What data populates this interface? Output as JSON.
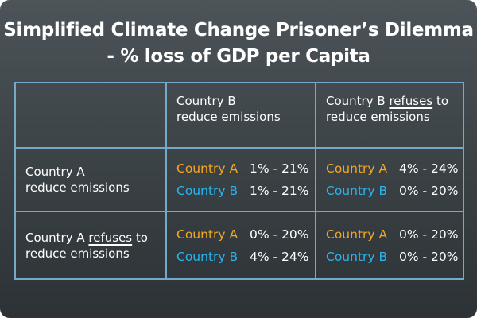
{
  "title": {
    "line1": "Simplified Climate Change Prisoner’s Dilemma",
    "line2": "- % loss of GDP per Capita"
  },
  "table": {
    "headers": [
      {
        "line1": "Country B",
        "line2": "reduce emissions"
      },
      {
        "prefix": "Country B",
        "emphasis": "refuses",
        "suffix": "to",
        "line2": "reduce emissions"
      }
    ],
    "rows": [
      {
        "label": {
          "line1": "Country A",
          "line2": "reduce emissions"
        },
        "cells": [
          [
            {
              "player": "Country A",
              "range": "1% - 21%"
            },
            {
              "player": "Country B",
              "range": "1% - 21%"
            }
          ],
          [
            {
              "player": "Country A",
              "range": "4% - 24%"
            },
            {
              "player": "Country B",
              "range": "0% - 20%"
            }
          ]
        ]
      },
      {
        "label": {
          "prefix": "Country A",
          "emphasis": "refuses",
          "suffix": "to",
          "line2": "reduce emissions"
        },
        "cells": [
          [
            {
              "player": "Country A",
              "range": "0% - 20%"
            },
            {
              "player": "Country B",
              "range": "4% - 24%"
            }
          ],
          [
            {
              "player": "Country A",
              "range": "0% - 20%"
            },
            {
              "player": "Country B",
              "range": "0% - 20%"
            }
          ]
        ]
      }
    ]
  }
}
